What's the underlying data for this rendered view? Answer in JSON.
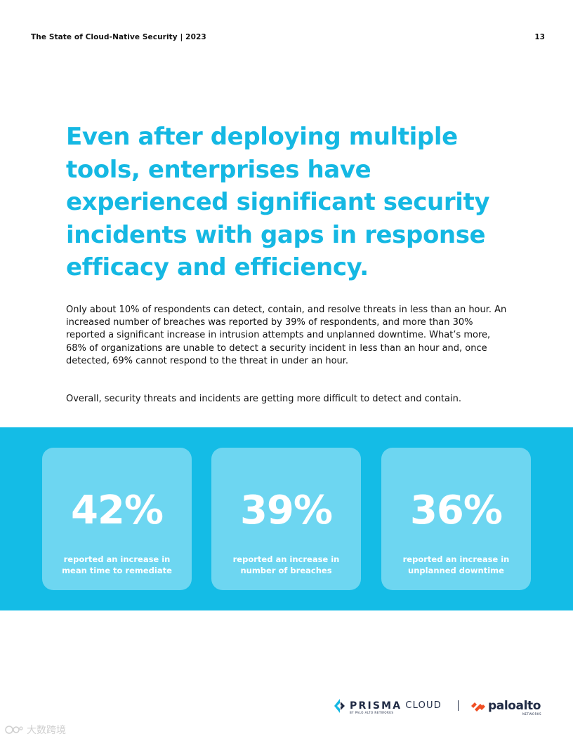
{
  "header": {
    "doc_title": "The State of Cloud-Native Security | 2023",
    "page_number": "13"
  },
  "headline": "Even after deploying multiple tools, enterprises have experienced significant security incidents with gaps in response efficacy and efficiency.",
  "body": {
    "paragraph_1": "Only about 10% of respondents can detect, contain, and resolve threats in less than an hour. An increased number of breaches was reported by 39% of respondents, and more than 30% reported a significant increase in intrusion attempts and unplanned downtime. What’s more, 68% of organizations are unable to detect a security incident in less than an hour and, once detected, 69% cannot respond to the threat in under an hour.",
    "paragraph_2": "Overall, security threats and incidents are getting more difficult to detect and contain."
  },
  "stats": [
    {
      "value": "42%",
      "description": "reported an increase in mean time to remediate"
    },
    {
      "value": "39%",
      "description": "reported an increase in number of breaches"
    },
    {
      "value": "36%",
      "description": "reported an increase in unplanned downtime"
    }
  ],
  "footer": {
    "prisma_text": "PRISMA",
    "cloud_text": "CLOUD",
    "prisma_sub": "BY PALO ALTO NETWORKS",
    "paloalto_text": "paloalto",
    "paloalto_sub": "NETWORKS"
  },
  "watermark": {
    "text": "大数跨境"
  },
  "colors": {
    "accent": "#15b8e3",
    "band": "#14bce6",
    "card": "#6dd6f1",
    "logo_dark": "#1f2a44",
    "paloalto_orange": "#f04e23"
  }
}
